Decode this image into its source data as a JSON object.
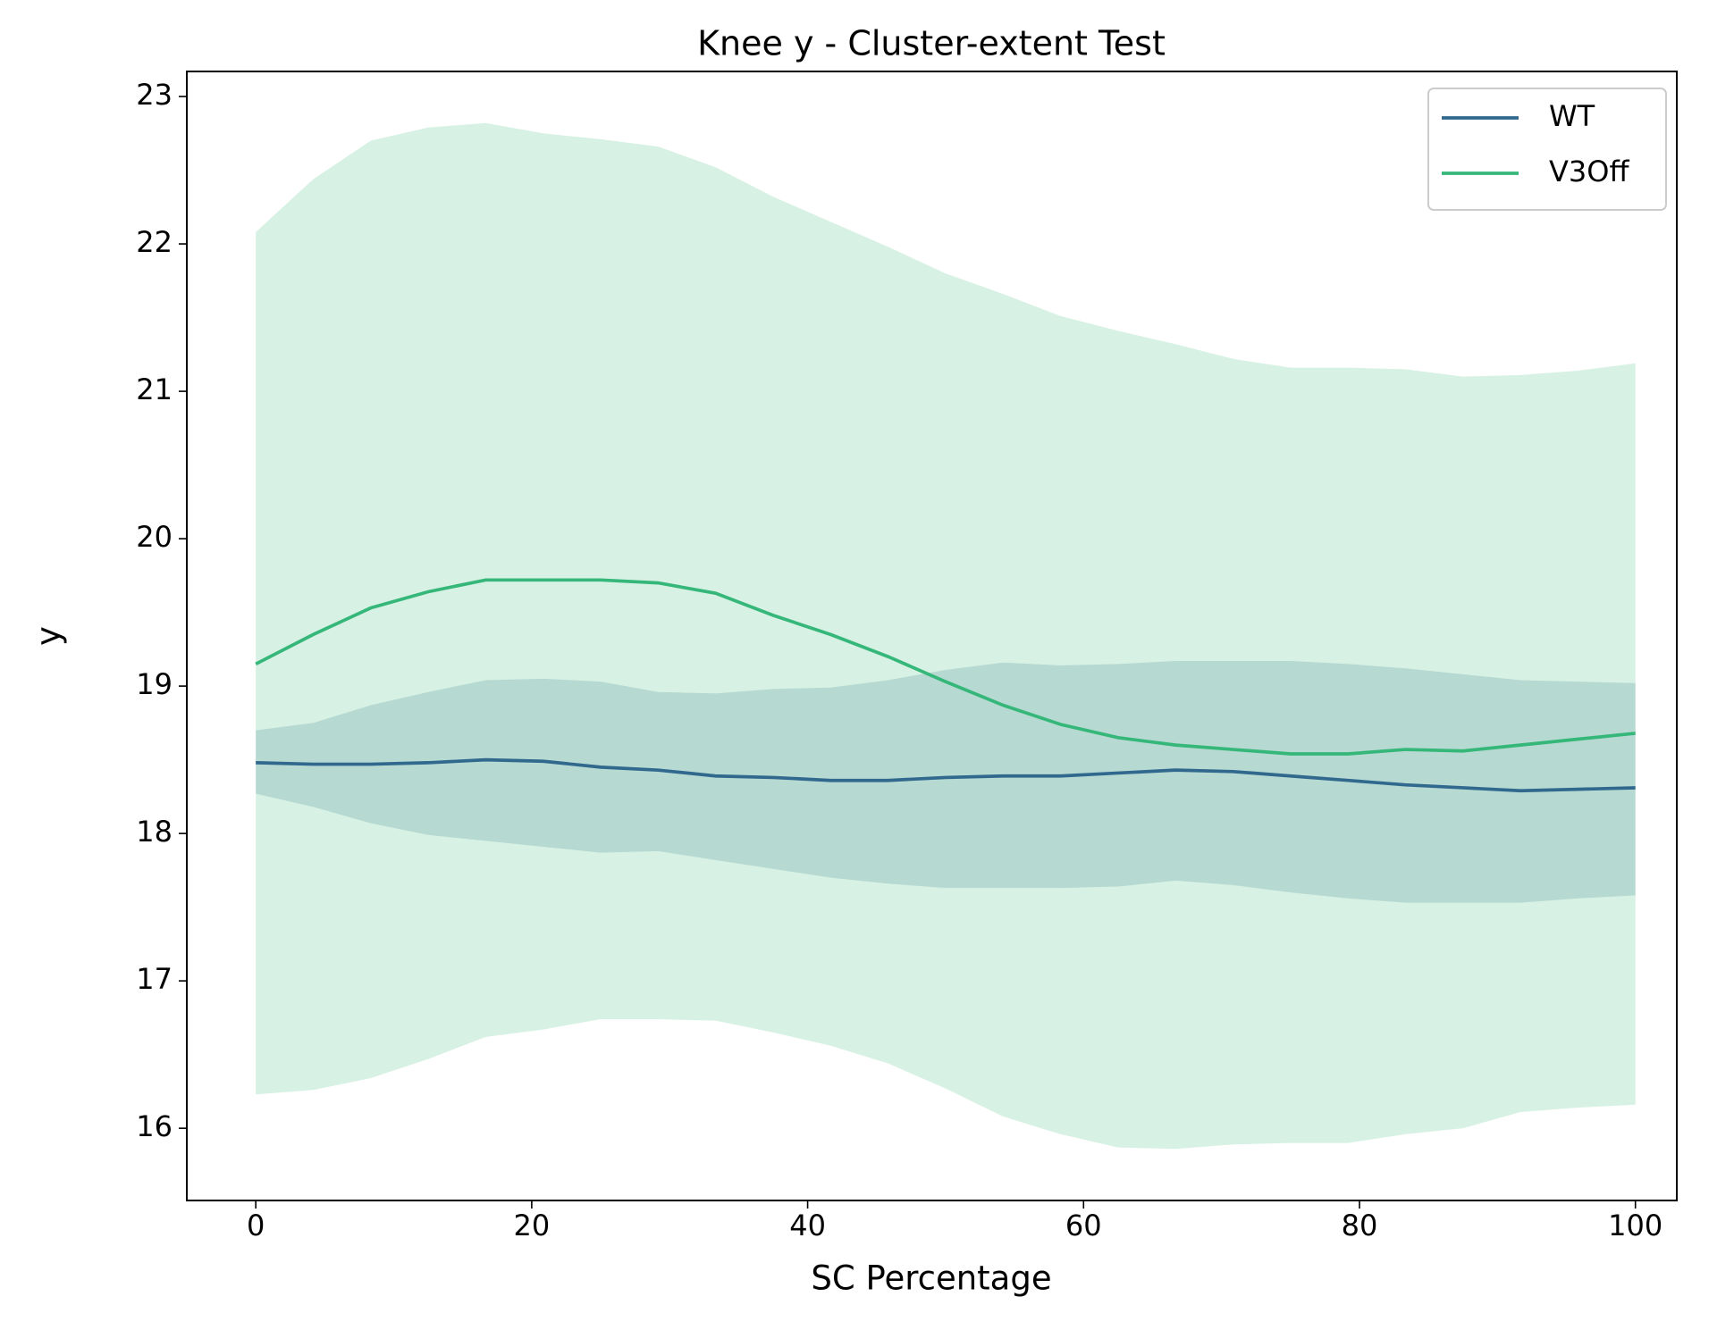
{
  "chart_data": {
    "type": "line",
    "title": "Knee y - Cluster-extent Test",
    "x_label": "SC Percentage",
    "y_label": "y",
    "x": [
      0,
      4.17,
      8.33,
      12.5,
      16.67,
      20.83,
      25,
      29.17,
      33.33,
      37.5,
      41.67,
      45.83,
      50,
      54.17,
      58.33,
      62.5,
      66.67,
      70.83,
      75,
      79.17,
      83.33,
      87.5,
      91.67,
      95.83,
      100
    ],
    "series": [
      {
        "name": "WT",
        "color": "#31688e",
        "values": [
          18.48,
          18.47,
          18.47,
          18.48,
          18.5,
          18.49,
          18.45,
          18.43,
          18.39,
          18.38,
          18.36,
          18.36,
          18.38,
          18.39,
          18.39,
          18.41,
          18.43,
          18.42,
          18.39,
          18.36,
          18.33,
          18.31,
          18.29,
          18.3,
          18.31
        ],
        "upper": [
          18.7,
          18.75,
          18.87,
          18.96,
          19.04,
          19.05,
          19.03,
          18.96,
          18.95,
          18.98,
          18.99,
          19.04,
          19.11,
          19.16,
          19.14,
          19.15,
          19.17,
          19.17,
          19.17,
          19.15,
          19.12,
          19.08,
          19.04,
          19.03,
          19.02
        ],
        "lower": [
          18.27,
          18.18,
          18.07,
          17.99,
          17.95,
          17.91,
          17.87,
          17.88,
          17.82,
          17.76,
          17.7,
          17.66,
          17.63,
          17.63,
          17.63,
          17.64,
          17.68,
          17.65,
          17.6,
          17.56,
          17.53,
          17.53,
          17.53,
          17.56,
          17.58
        ]
      },
      {
        "name": "V3Off",
        "color": "#35b779",
        "values": [
          19.15,
          19.35,
          19.53,
          19.64,
          19.72,
          19.72,
          19.72,
          19.7,
          19.63,
          19.48,
          19.35,
          19.2,
          19.03,
          18.87,
          18.74,
          18.65,
          18.6,
          18.57,
          18.54,
          18.54,
          18.57,
          18.56,
          18.6,
          18.64,
          18.68
        ],
        "upper": [
          22.08,
          22.44,
          22.7,
          22.79,
          22.82,
          22.75,
          22.71,
          22.66,
          22.52,
          22.32,
          22.15,
          21.98,
          21.8,
          21.66,
          21.51,
          21.41,
          21.32,
          21.22,
          21.16,
          21.16,
          21.15,
          21.1,
          21.11,
          21.14,
          21.19
        ],
        "lower": [
          16.23,
          16.26,
          16.34,
          16.47,
          16.62,
          16.67,
          16.74,
          16.74,
          16.73,
          16.65,
          16.56,
          16.44,
          16.27,
          16.08,
          15.96,
          15.87,
          15.86,
          15.89,
          15.9,
          15.9,
          15.96,
          16.0,
          16.11,
          16.14,
          16.16
        ]
      }
    ],
    "xlim": [
      -5,
      103
    ],
    "xticks": [
      0,
      20,
      40,
      60,
      80,
      100
    ],
    "ylim": [
      15.51,
      23.17
    ],
    "yticks": [
      16,
      17,
      18,
      19,
      20,
      21,
      22,
      23
    ],
    "band_opacity": 0.2,
    "legend": "upper right",
    "grid": false
  }
}
